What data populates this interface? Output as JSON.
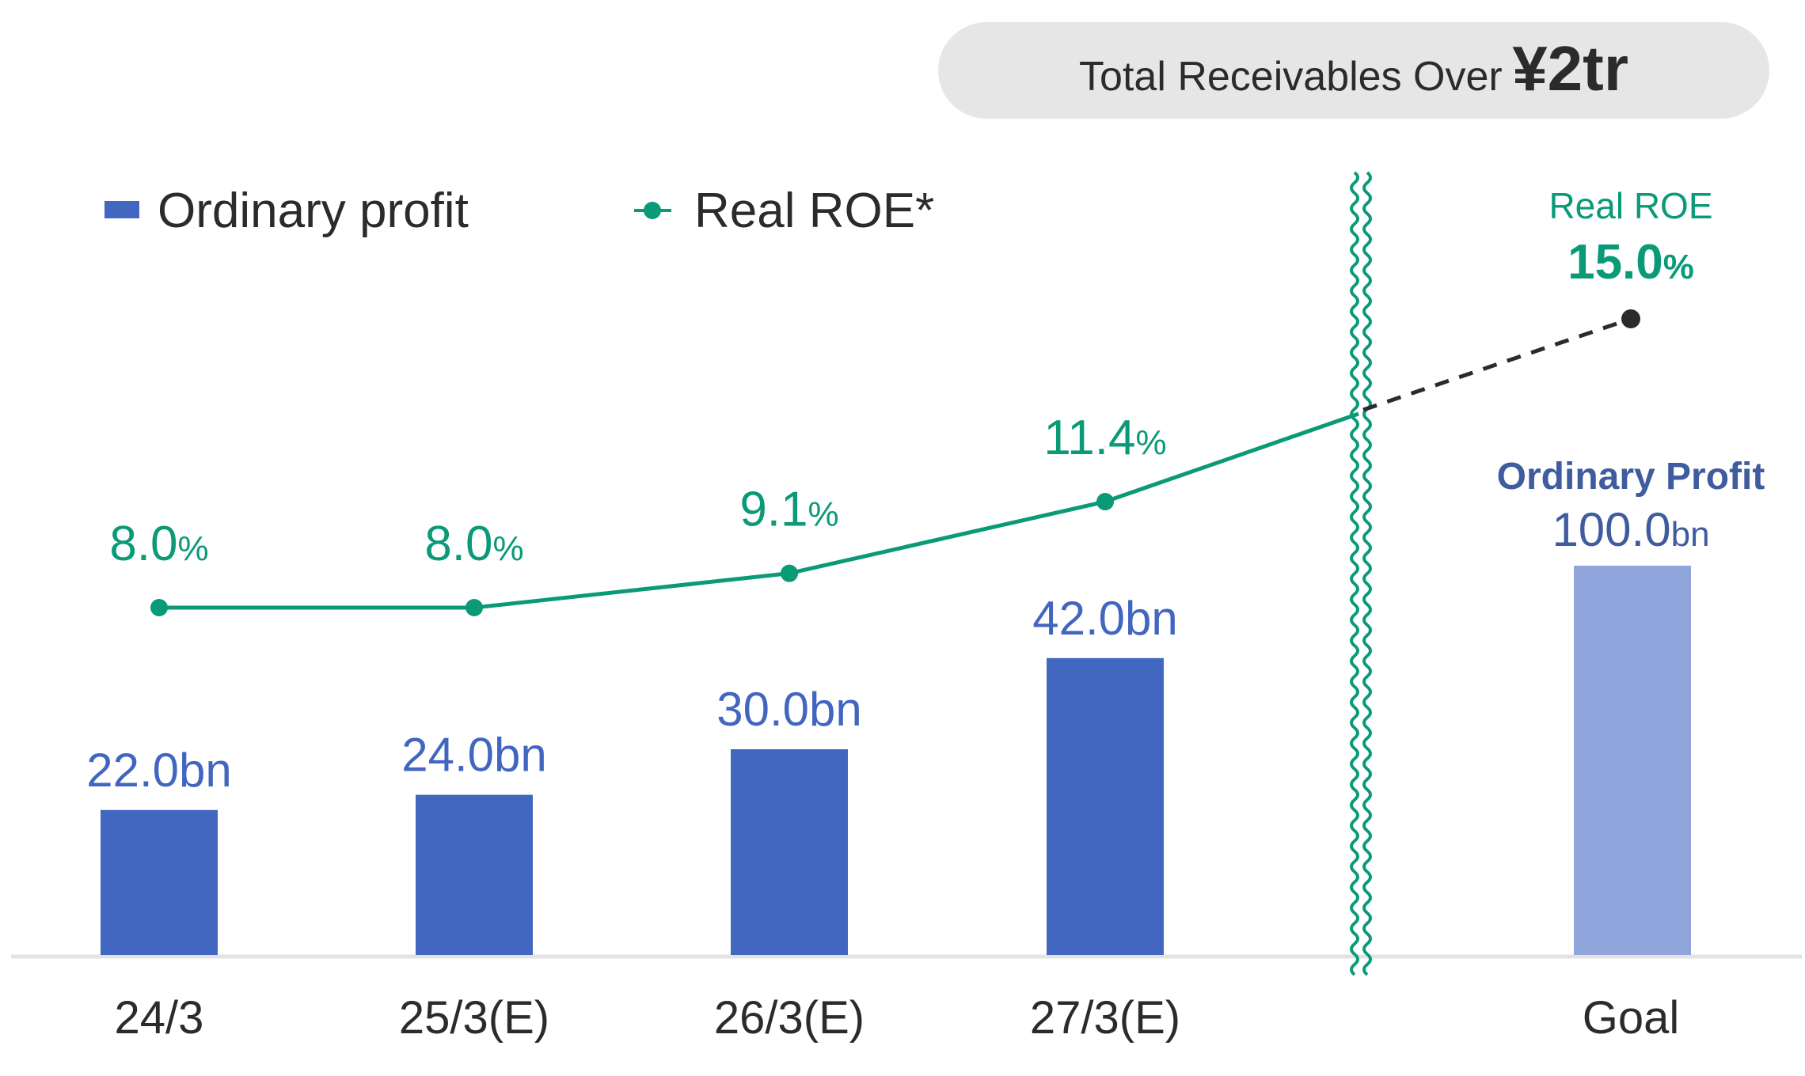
{
  "banner": {
    "prefix": "Total Receivables Over",
    "amount": "¥2tr"
  },
  "colors": {
    "bar": "#4267C0",
    "goal_bar": "#8FA5DB",
    "roe": "#0A9A78",
    "bar_label": "#4266C0",
    "goal_label": "#3F5C9E",
    "text": "#2b2b2b",
    "banner_bg": "#E6E6E6",
    "axis": "#E3E3E3",
    "projection": "#2b2b2b"
  },
  "chart_data": {
    "type": "bar",
    "categories": [
      "24/3",
      "25/3(E)",
      "26/3(E)",
      "27/3(E)"
    ],
    "legend": {
      "bar": "Ordinary profit",
      "line": "Real ROE*",
      "placement": "top-left"
    },
    "series": [
      {
        "name": "Ordinary profit",
        "type": "bar",
        "unit": "bn",
        "values": [
          22.0,
          24.0,
          30.0,
          42.0
        ],
        "labels": [
          "22.0bn",
          "24.0bn",
          "30.0bn",
          "42.0bn"
        ]
      },
      {
        "name": "Real ROE*",
        "type": "line",
        "unit": "%",
        "values": [
          8.0,
          8.0,
          9.1,
          11.4
        ],
        "labels": [
          "8.0",
          "8.0",
          "9.1",
          "11.4"
        ]
      }
    ],
    "axis_break": true,
    "goal": {
      "category": "Goal",
      "ordinary_profit_title": "Ordinary Profit",
      "ordinary_profit": 100.0,
      "ordinary_profit_label": "100.0",
      "ordinary_profit_unit": "bn",
      "roe_title": "Real ROE",
      "roe": 15.0,
      "roe_label": "15.0",
      "roe_unit": "%"
    },
    "grid": false
  }
}
